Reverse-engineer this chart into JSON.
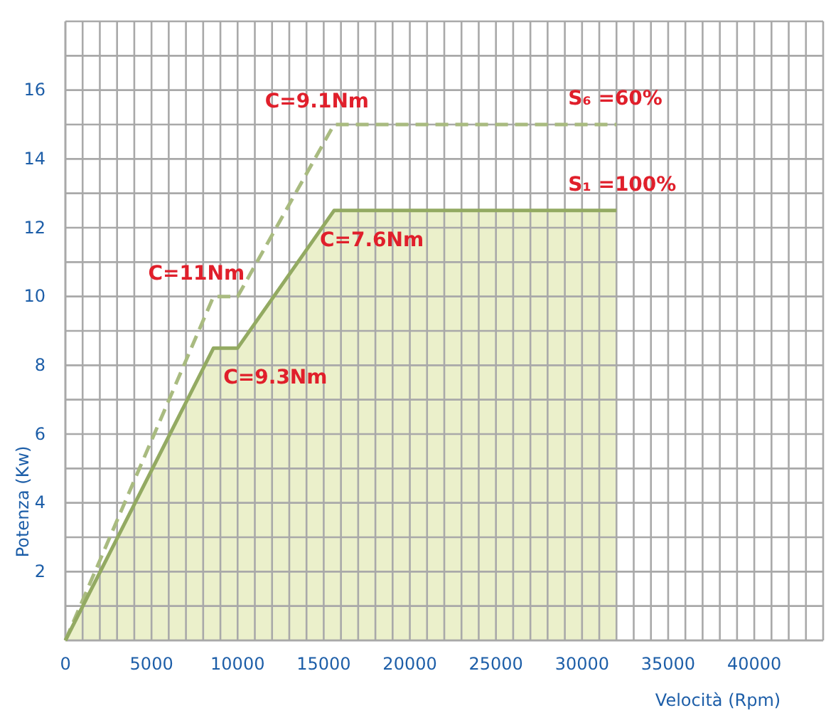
{
  "chart_data": {
    "type": "line",
    "xlabel": "Velocità (Rpm)",
    "ylabel": "Potenza (Kw)",
    "xlim": [
      0,
      44000
    ],
    "ylim": [
      0,
      18
    ],
    "xticks": [
      0,
      {
        "value": 1000,
        "label": null
      },
      {
        "value": 2000,
        "label": null
      },
      {
        "value": 3000,
        "label": null
      },
      {
        "value": 4000,
        "label": null
      },
      5000,
      {
        "value": 6000,
        "label": null
      },
      {
        "value": 7000,
        "label": null
      },
      {
        "value": 8000,
        "label": null
      },
      {
        "value": 9000,
        "label": null
      },
      10000,
      {
        "value": 11000,
        "label": null
      },
      {
        "value": 12000,
        "label": null
      },
      {
        "value": 13000,
        "label": null
      },
      {
        "value": 14000,
        "label": null
      },
      15000,
      {
        "value": 16000,
        "label": null
      },
      {
        "value": 17000,
        "label": null
      },
      {
        "value": 18000,
        "label": null
      },
      {
        "value": 19000,
        "label": null
      },
      20000,
      {
        "value": 21000,
        "label": null
      },
      {
        "value": 22000,
        "label": null
      },
      {
        "value": 23000,
        "label": null
      },
      {
        "value": 24000,
        "label": null
      },
      25000,
      {
        "value": 26000,
        "label": null
      },
      {
        "value": 27000,
        "label": null
      },
      {
        "value": 28000,
        "label": null
      },
      {
        "value": 29000,
        "label": null
      },
      30000,
      {
        "value": 31000,
        "label": null
      },
      {
        "value": 32000,
        "label": null
      },
      {
        "value": 33000,
        "label": null
      },
      {
        "value": 34000,
        "label": null
      },
      35000,
      {
        "value": 36000,
        "label": null
      },
      {
        "value": 37000,
        "label": null
      },
      {
        "value": 38000,
        "label": null
      },
      {
        "value": 39000,
        "label": null
      },
      40000,
      {
        "value": 41000,
        "label": null
      },
      {
        "value": 42000,
        "label": null
      },
      {
        "value": 43000,
        "label": null
      },
      {
        "value": 44000,
        "label": null
      }
    ],
    "yticks": [
      {
        "value": 0,
        "label": null
      },
      {
        "value": 1,
        "label": null
      },
      2,
      {
        "value": 3,
        "label": null
      },
      4,
      {
        "value": 5,
        "label": null
      },
      6,
      {
        "value": 7,
        "label": null
      },
      8,
      {
        "value": 9,
        "label": null
      },
      10,
      {
        "value": 11,
        "label": null
      },
      12,
      {
        "value": 13,
        "label": null
      },
      14,
      {
        "value": 15,
        "label": null
      },
      16,
      {
        "value": 17,
        "label": null
      },
      {
        "value": 18,
        "label": null
      }
    ],
    "grid": true,
    "series": [
      {
        "name": "S₆ =60%",
        "line_style": "dashed",
        "color": "#a9bb80",
        "x": [
          0,
          8600,
          10000,
          15600,
          32000
        ],
        "values": [
          0,
          10,
          10,
          15,
          15
        ]
      },
      {
        "name": "S₁ =100%",
        "type": "area",
        "line_style": "solid",
        "color": "#93aa62",
        "x": [
          0,
          8600,
          10000,
          15600,
          32000
        ],
        "values": [
          0,
          8.5,
          8.5,
          12.5,
          12.5
        ]
      }
    ],
    "annotations": [
      {
        "text": "C=9.1Nm",
        "x": 15600,
        "y": 15
      },
      {
        "text": "C=11Nm",
        "x": 8600,
        "y": 10
      },
      {
        "text": "C=7.6Nm",
        "x": 15600,
        "y": 12.5
      },
      {
        "text": "C=9.3Nm",
        "x": 10000,
        "y": 8.5
      }
    ]
  }
}
